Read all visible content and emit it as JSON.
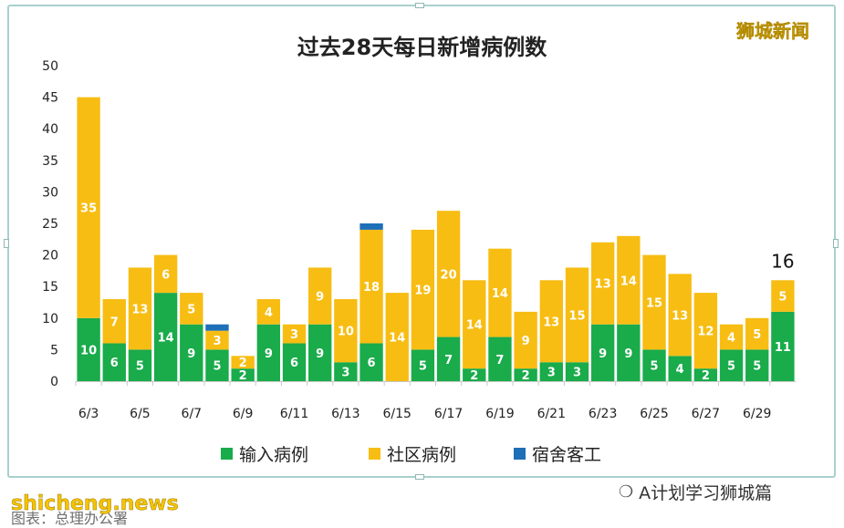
{
  "brand": "狮城新闻",
  "watermark_right": "A计划学习狮城篇",
  "watermark_left": "shicheng.news",
  "source": "图表：总理办公署",
  "chart_data": {
    "type": "bar",
    "stacked": true,
    "title": "过去28天每日新增病例数",
    "xlabel": "",
    "ylabel": "",
    "ylim": [
      0,
      50
    ],
    "yticks": [
      0,
      5,
      10,
      15,
      20,
      25,
      30,
      35,
      40,
      45,
      50
    ],
    "categories": [
      "6/3",
      "6/4",
      "6/5",
      "6/6",
      "6/7",
      "6/8",
      "6/9",
      "6/10",
      "6/11",
      "6/12",
      "6/13",
      "6/14",
      "6/15",
      "6/16",
      "6/17",
      "6/18",
      "6/19",
      "6/20",
      "6/21",
      "6/22",
      "6/23",
      "6/24",
      "6/25",
      "6/26",
      "6/27",
      "6/28",
      "6/29",
      "6/30"
    ],
    "x_tick_labels": [
      "6/3",
      "",
      "6/5",
      "",
      "6/7",
      "",
      "6/9",
      "",
      "6/11",
      "",
      "6/13",
      "",
      "6/15",
      "",
      "6/17",
      "",
      "6/19",
      "",
      "6/21",
      "",
      "6/23",
      "",
      "6/25",
      "",
      "6/27",
      "",
      "6/29",
      ""
    ],
    "series": [
      {
        "name": "输入病例",
        "color": "#1aab4b",
        "values": [
          10,
          6,
          5,
          14,
          9,
          5,
          2,
          9,
          6,
          9,
          3,
          6,
          0,
          5,
          7,
          2,
          7,
          2,
          3,
          3,
          9,
          9,
          5,
          4,
          2,
          5,
          5,
          11
        ]
      },
      {
        "name": "社区病例",
        "color": "#f7bd13",
        "values": [
          35,
          7,
          13,
          6,
          5,
          3,
          2,
          4,
          3,
          9,
          10,
          18,
          14,
          19,
          20,
          14,
          14,
          9,
          13,
          15,
          13,
          14,
          15,
          13,
          12,
          4,
          5,
          5
        ]
      },
      {
        "name": "宿舍客工",
        "color": "#1d6fb8",
        "values": [
          0,
          0,
          0,
          0,
          0,
          1,
          0,
          0,
          0,
          0,
          0,
          1,
          0,
          0,
          0,
          0,
          0,
          0,
          0,
          0,
          0,
          0,
          0,
          0,
          0,
          0,
          0,
          0
        ]
      }
    ],
    "annotations": [
      {
        "category": "6/30",
        "text": "16"
      }
    ],
    "grid": false,
    "legend": "bottom"
  }
}
